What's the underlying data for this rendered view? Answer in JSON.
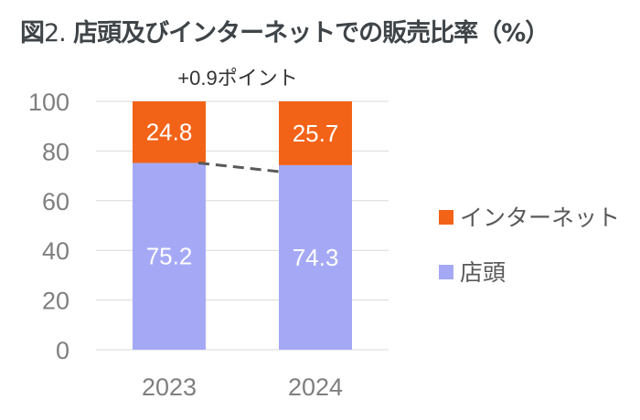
{
  "title_prefix": "図",
  "title_number": "2.",
  "title_text": "店頭及びインターネットでの販売比率（%）",
  "chart_data": {
    "type": "bar",
    "stacked": true,
    "categories": [
      "2023",
      "2024"
    ],
    "series": [
      {
        "name": "店頭",
        "values": [
          75.2,
          74.3
        ],
        "color": "#A5A9F5"
      },
      {
        "name": "インターネット",
        "values": [
          24.8,
          25.7
        ],
        "color": "#F26318"
      }
    ],
    "ylim": [
      0,
      100
    ],
    "yticks": [
      0,
      20,
      40,
      60,
      80,
      100
    ],
    "grid": true,
    "legend_placement": "right",
    "annotation": "+0.9ポイント",
    "connector_color": "#595959"
  }
}
